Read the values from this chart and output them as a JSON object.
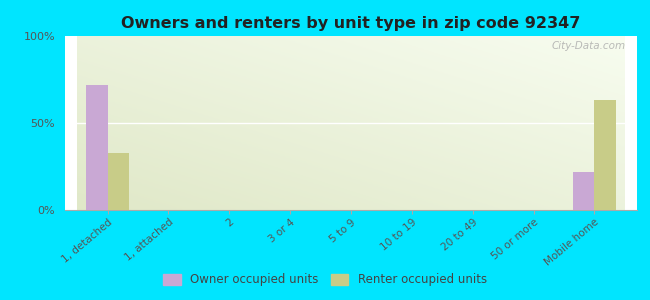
{
  "title": "Owners and renters by unit type in zip code 92347",
  "categories": [
    "1, detached",
    "1, attached",
    "2",
    "3 or 4",
    "5 to 9",
    "10 to 19",
    "20 to 49",
    "50 or more",
    "Mobile home"
  ],
  "owner_values": [
    72,
    0,
    0,
    0,
    0,
    0,
    0,
    0,
    22
  ],
  "renter_values": [
    33,
    0,
    0,
    0,
    0,
    0,
    0,
    0,
    63
  ],
  "owner_color": "#c9a8d4",
  "renter_color": "#c8cc88",
  "background_outer": "#00e5ff",
  "ylim": [
    0,
    100
  ],
  "yticks": [
    0,
    50,
    100
  ],
  "ytick_labels": [
    "0%",
    "50%",
    "100%"
  ],
  "bar_width": 0.35,
  "legend_owner": "Owner occupied units",
  "legend_renter": "Renter occupied units",
  "watermark": "City-Data.com"
}
